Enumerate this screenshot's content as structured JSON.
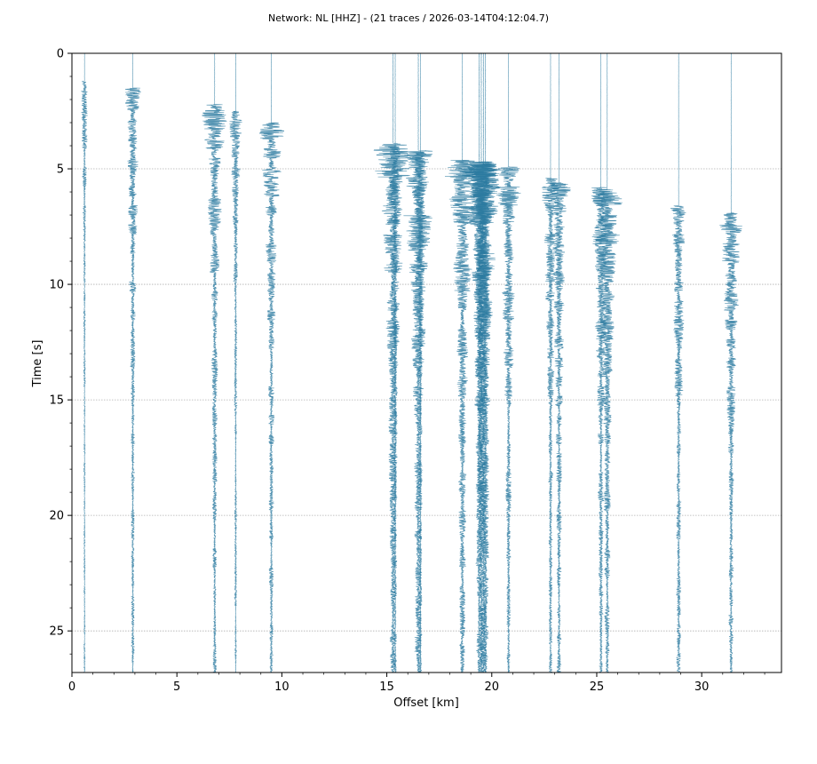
{
  "chart_data": {
    "type": "line",
    "title": "Network: NL [HHZ] - (21 traces / 2026-03-14T04:12:04.7)",
    "xlabel": "Offset [km]",
    "ylabel": "Time [s]",
    "xlim": [
      0,
      33.8
    ],
    "ylim": [
      26.8,
      0
    ],
    "y_inverted": true,
    "xticks": [
      0,
      5,
      10,
      15,
      20,
      25,
      30
    ],
    "yticks": [
      0,
      5,
      10,
      15,
      20,
      25
    ],
    "grid": "horizontal dotted",
    "trace_color": "#2b7aa0",
    "series": [
      {
        "offset": 0.6,
        "onset": 1.2,
        "amplitude": 0.5,
        "density": 0.25
      },
      {
        "offset": 2.9,
        "onset": 1.5,
        "amplitude": 0.8,
        "density": 0.45
      },
      {
        "offset": 6.8,
        "onset": 2.2,
        "amplitude": 0.8,
        "density": 0.55
      },
      {
        "offset": 7.8,
        "onset": 2.5,
        "amplitude": 0.55,
        "density": 0.4
      },
      {
        "offset": 9.5,
        "onset": 3.0,
        "amplitude": 0.8,
        "density": 0.55
      },
      {
        "offset": 15.3,
        "onset": 3.9,
        "amplitude": 0.85,
        "density": 0.8
      },
      {
        "offset": 15.4,
        "onset": 4.1,
        "amplitude": 0.5,
        "density": 0.6
      },
      {
        "offset": 16.5,
        "onset": 4.2,
        "amplitude": 0.9,
        "density": 0.8
      },
      {
        "offset": 16.6,
        "onset": 4.3,
        "amplitude": 0.5,
        "density": 0.6
      },
      {
        "offset": 18.6,
        "onset": 4.6,
        "amplitude": 0.9,
        "density": 0.7
      },
      {
        "offset": 19.4,
        "onset": 4.7,
        "amplitude": 0.7,
        "density": 0.9
      },
      {
        "offset": 19.5,
        "onset": 4.7,
        "amplitude": 0.7,
        "density": 0.9
      },
      {
        "offset": 19.6,
        "onset": 4.8,
        "amplitude": 0.7,
        "density": 0.9
      },
      {
        "offset": 19.7,
        "onset": 4.8,
        "amplitude": 0.7,
        "density": 0.9
      },
      {
        "offset": 20.8,
        "onset": 4.9,
        "amplitude": 0.8,
        "density": 0.6
      },
      {
        "offset": 22.8,
        "onset": 5.4,
        "amplitude": 0.7,
        "density": 0.5
      },
      {
        "offset": 23.2,
        "onset": 5.6,
        "amplitude": 0.9,
        "density": 0.5
      },
      {
        "offset": 25.2,
        "onset": 5.8,
        "amplitude": 0.8,
        "density": 0.6
      },
      {
        "offset": 25.5,
        "onset": 5.9,
        "amplitude": 0.9,
        "density": 0.6
      },
      {
        "offset": 28.9,
        "onset": 6.6,
        "amplitude": 0.8,
        "density": 0.5
      },
      {
        "offset": 31.4,
        "onset": 6.9,
        "amplitude": 0.9,
        "density": 0.5
      }
    ]
  }
}
